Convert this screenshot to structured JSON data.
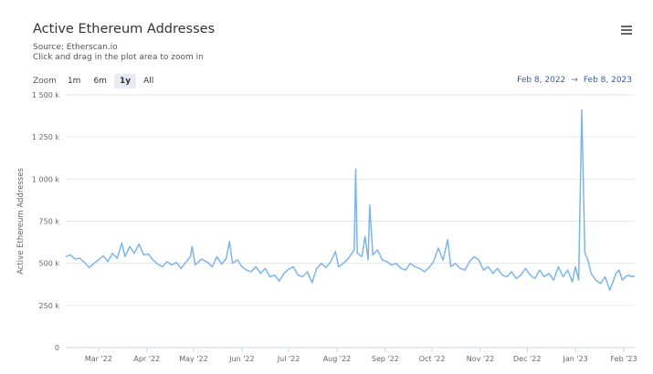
{
  "header": {
    "title": "Active Ethereum Addresses",
    "source": "Source: Etherscan.io",
    "hint": "Click and drag in the plot area to zoom in"
  },
  "zoom": {
    "label": "Zoom",
    "buttons": [
      "1m",
      "6m",
      "1y",
      "All"
    ],
    "active": "1y"
  },
  "range": {
    "from": "Feb 8, 2022",
    "to": "Feb 8, 2023",
    "separator": "→"
  },
  "icons": {
    "menu": "hamburger-menu-icon"
  },
  "colors": {
    "line": "#7cb5ec",
    "grid": "#e6e6e6",
    "range_text": "#335cad"
  },
  "chart_data": {
    "type": "line",
    "title": "Active Ethereum Addresses",
    "xlabel": "",
    "ylabel": "Active Ethereum Addresses",
    "ylim": [
      0,
      1500000
    ],
    "yticks": [
      0,
      250000,
      500000,
      750000,
      1000000,
      1250000,
      1500000
    ],
    "ytick_labels": [
      "0",
      "250 k",
      "500 k",
      "750 k",
      "1 000 k",
      "1 250 k",
      "1 500 k"
    ],
    "xlim": [
      "2022-02-08",
      "2023-02-08"
    ],
    "xticks": [
      "2022-03-01",
      "2022-04-01",
      "2022-05-01",
      "2022-06-01",
      "2022-07-01",
      "2022-08-01",
      "2022-09-01",
      "2022-10-01",
      "2022-11-01",
      "2022-12-01",
      "2023-01-01",
      "2023-02-01"
    ],
    "xtick_labels": [
      "Mar '22",
      "Apr '22",
      "May '22",
      "Jun '22",
      "Jul '22",
      "Aug '22",
      "Sep '22",
      "Oct '22",
      "Nov '22",
      "Dec '22",
      "Jan '23",
      "Feb '23"
    ],
    "grid": true,
    "legend": "none",
    "series": [
      {
        "points": [
          [
            "2022-02-08",
            540000
          ],
          [
            "2022-02-11",
            550000
          ],
          [
            "2022-02-14",
            525000
          ],
          [
            "2022-02-17",
            530000
          ],
          [
            "2022-02-20",
            505000
          ],
          [
            "2022-02-23",
            475000
          ],
          [
            "2022-02-26",
            500000
          ],
          [
            "2022-03-01",
            520000
          ],
          [
            "2022-03-04",
            545000
          ],
          [
            "2022-03-07",
            510000
          ],
          [
            "2022-03-10",
            560000
          ],
          [
            "2022-03-13",
            530000
          ],
          [
            "2022-03-16",
            620000
          ],
          [
            "2022-03-18",
            540000
          ],
          [
            "2022-03-21",
            600000
          ],
          [
            "2022-03-24",
            560000
          ],
          [
            "2022-03-27",
            615000
          ],
          [
            "2022-03-30",
            550000
          ],
          [
            "2022-04-02",
            555000
          ],
          [
            "2022-04-05",
            520000
          ],
          [
            "2022-04-08",
            495000
          ],
          [
            "2022-04-11",
            480000
          ],
          [
            "2022-04-14",
            510000
          ],
          [
            "2022-04-17",
            490000
          ],
          [
            "2022-04-20",
            505000
          ],
          [
            "2022-04-23",
            470000
          ],
          [
            "2022-04-26",
            505000
          ],
          [
            "2022-04-29",
            540000
          ],
          [
            "2022-04-30",
            600000
          ],
          [
            "2022-05-02",
            490000
          ],
          [
            "2022-05-06",
            525000
          ],
          [
            "2022-05-10",
            505000
          ],
          [
            "2022-05-13",
            480000
          ],
          [
            "2022-05-16",
            540000
          ],
          [
            "2022-05-19",
            495000
          ],
          [
            "2022-05-22",
            530000
          ],
          [
            "2022-05-24",
            630000
          ],
          [
            "2022-05-26",
            500000
          ],
          [
            "2022-05-29",
            520000
          ],
          [
            "2022-06-01",
            480000
          ],
          [
            "2022-06-04",
            460000
          ],
          [
            "2022-06-07",
            450000
          ],
          [
            "2022-06-10",
            480000
          ],
          [
            "2022-06-13",
            440000
          ],
          [
            "2022-06-16",
            470000
          ],
          [
            "2022-06-19",
            420000
          ],
          [
            "2022-06-22",
            430000
          ],
          [
            "2022-06-25",
            395000
          ],
          [
            "2022-06-28",
            440000
          ],
          [
            "2022-07-01",
            465000
          ],
          [
            "2022-07-04",
            480000
          ],
          [
            "2022-07-07",
            430000
          ],
          [
            "2022-07-10",
            420000
          ],
          [
            "2022-07-13",
            450000
          ],
          [
            "2022-07-16",
            385000
          ],
          [
            "2022-07-19",
            470000
          ],
          [
            "2022-07-22",
            500000
          ],
          [
            "2022-07-25",
            475000
          ],
          [
            "2022-07-28",
            510000
          ],
          [
            "2022-07-31",
            570000
          ],
          [
            "2022-08-02",
            480000
          ],
          [
            "2022-08-05",
            500000
          ],
          [
            "2022-08-08",
            525000
          ],
          [
            "2022-08-12",
            580000
          ],
          [
            "2022-08-13",
            1060000
          ],
          [
            "2022-08-14",
            560000
          ],
          [
            "2022-08-17",
            540000
          ],
          [
            "2022-08-19",
            660000
          ],
          [
            "2022-08-21",
            520000
          ],
          [
            "2022-08-22",
            845000
          ],
          [
            "2022-08-24",
            550000
          ],
          [
            "2022-08-27",
            580000
          ],
          [
            "2022-08-30",
            520000
          ],
          [
            "2022-09-02",
            510000
          ],
          [
            "2022-09-05",
            490000
          ],
          [
            "2022-09-08",
            500000
          ],
          [
            "2022-09-11",
            470000
          ],
          [
            "2022-09-14",
            460000
          ],
          [
            "2022-09-17",
            500000
          ],
          [
            "2022-09-20",
            480000
          ],
          [
            "2022-09-23",
            470000
          ],
          [
            "2022-09-26",
            450000
          ],
          [
            "2022-09-29",
            475000
          ],
          [
            "2022-10-02",
            510000
          ],
          [
            "2022-10-05",
            590000
          ],
          [
            "2022-10-08",
            520000
          ],
          [
            "2022-10-11",
            640000
          ],
          [
            "2022-10-13",
            480000
          ],
          [
            "2022-10-16",
            500000
          ],
          [
            "2022-10-19",
            470000
          ],
          [
            "2022-10-22",
            460000
          ],
          [
            "2022-10-25",
            510000
          ],
          [
            "2022-10-28",
            540000
          ],
          [
            "2022-10-31",
            520000
          ],
          [
            "2022-11-03",
            460000
          ],
          [
            "2022-11-06",
            480000
          ],
          [
            "2022-11-09",
            440000
          ],
          [
            "2022-11-12",
            470000
          ],
          [
            "2022-11-15",
            430000
          ],
          [
            "2022-11-18",
            420000
          ],
          [
            "2022-11-21",
            450000
          ],
          [
            "2022-11-24",
            410000
          ],
          [
            "2022-11-27",
            430000
          ],
          [
            "2022-11-30",
            470000
          ],
          [
            "2022-12-03",
            430000
          ],
          [
            "2022-12-06",
            410000
          ],
          [
            "2022-12-09",
            460000
          ],
          [
            "2022-12-12",
            420000
          ],
          [
            "2022-12-15",
            440000
          ],
          [
            "2022-12-18",
            400000
          ],
          [
            "2022-12-21",
            480000
          ],
          [
            "2022-12-24",
            420000
          ],
          [
            "2022-12-27",
            460000
          ],
          [
            "2022-12-30",
            390000
          ],
          [
            "2023-01-01",
            480000
          ],
          [
            "2023-01-03",
            400000
          ],
          [
            "2023-01-05",
            1410000
          ],
          [
            "2023-01-07",
            560000
          ],
          [
            "2023-01-09",
            520000
          ],
          [
            "2023-01-11",
            440000
          ],
          [
            "2023-01-14",
            400000
          ],
          [
            "2023-01-17",
            380000
          ],
          [
            "2023-01-20",
            420000
          ],
          [
            "2023-01-23",
            340000
          ],
          [
            "2023-01-25",
            390000
          ],
          [
            "2023-01-27",
            440000
          ],
          [
            "2023-01-29",
            460000
          ],
          [
            "2023-01-31",
            400000
          ],
          [
            "2023-02-02",
            420000
          ],
          [
            "2023-02-04",
            430000
          ],
          [
            "2023-02-06",
            420000
          ],
          [
            "2023-02-08",
            425000
          ]
        ]
      }
    ]
  }
}
